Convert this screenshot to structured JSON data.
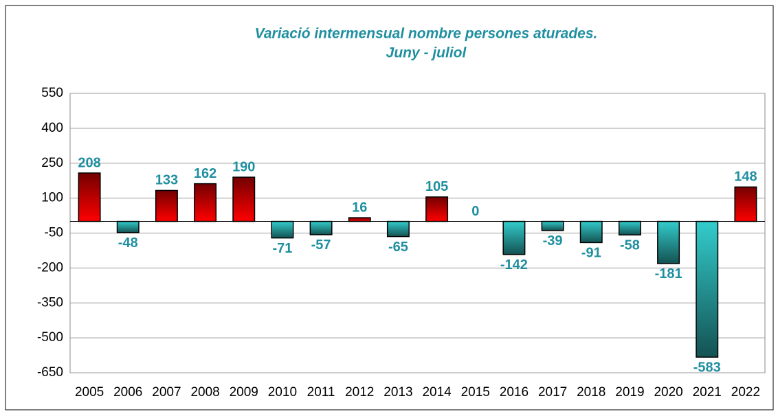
{
  "chart_data": {
    "type": "bar",
    "title": [
      "Variació intermensual nombre persones aturades.",
      "Juny - juliol"
    ],
    "categories": [
      "2005",
      "2006",
      "2007",
      "2008",
      "2009",
      "2010",
      "2011",
      "2012",
      "2013",
      "2014",
      "2015",
      "2016",
      "2017",
      "2018",
      "2019",
      "2020",
      "2021",
      "2022"
    ],
    "values": [
      208,
      -48,
      133,
      162,
      190,
      -71,
      -57,
      16,
      -65,
      105,
      0,
      -142,
      -39,
      -91,
      -58,
      -181,
      -583,
      148
    ],
    "positive_color": "#ff0000",
    "negative_color": "#33cccc",
    "label_color": "#1f8fa0",
    "ylim": [
      -650,
      550
    ],
    "yticks": [
      -650,
      -500,
      -350,
      -200,
      -50,
      100,
      250,
      400,
      550
    ],
    "grid": true
  }
}
